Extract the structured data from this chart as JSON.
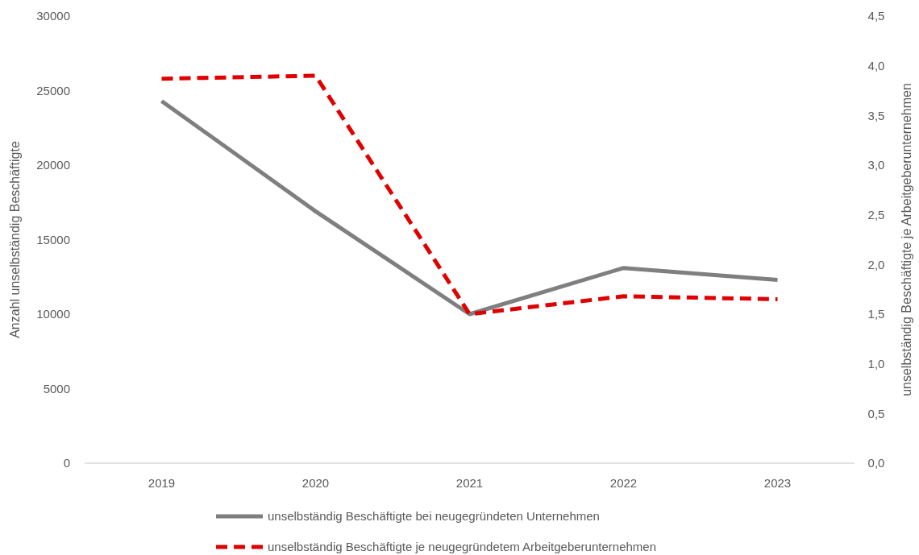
{
  "chart_data": {
    "type": "line",
    "categories": [
      "2019",
      "2020",
      "2021",
      "2022",
      "2023"
    ],
    "ylabel": "Anzahl unselbständig Beschäftigte",
    "y2label": "unselbständig Beschäftigte je Arbeitgeberunternehmen",
    "ylim": [
      0,
      30000
    ],
    "yticks": [
      0,
      5000,
      10000,
      15000,
      20000,
      25000,
      30000
    ],
    "y2lim": [
      0,
      4.5
    ],
    "y2ticks": [
      {
        "value": 0,
        "label": "0,0"
      },
      {
        "value": 0.5,
        "label": "0,5"
      },
      {
        "value": 1,
        "label": "1,0"
      },
      {
        "value": 1.5,
        "label": "1,5"
      },
      {
        "value": 2,
        "label": "2,0"
      },
      {
        "value": 2.5,
        "label": "2,5"
      },
      {
        "value": 3,
        "label": "3,0"
      },
      {
        "value": 3.5,
        "label": "3,5"
      },
      {
        "value": 4,
        "label": "4,0"
      },
      {
        "value": 4.5,
        "label": "4,5"
      }
    ],
    "grid": false,
    "legend": "bottom",
    "series": [
      {
        "name": "unselbständig Beschäftigte bei neugegründeten Unternehmen",
        "color": "#7f7f7f",
        "line_style": "solid",
        "values": [
          24300,
          16900,
          10000,
          13100,
          12300
        ]
      },
      {
        "name": "unselbständig Beschäftigte je neugegründetem Arbeitgeberunternehmen",
        "color": "#e00000",
        "line_style": "dashed",
        "axis": "y2",
        "values": [
          3.87,
          3.9,
          1.5,
          1.68,
          1.65
        ]
      }
    ]
  }
}
